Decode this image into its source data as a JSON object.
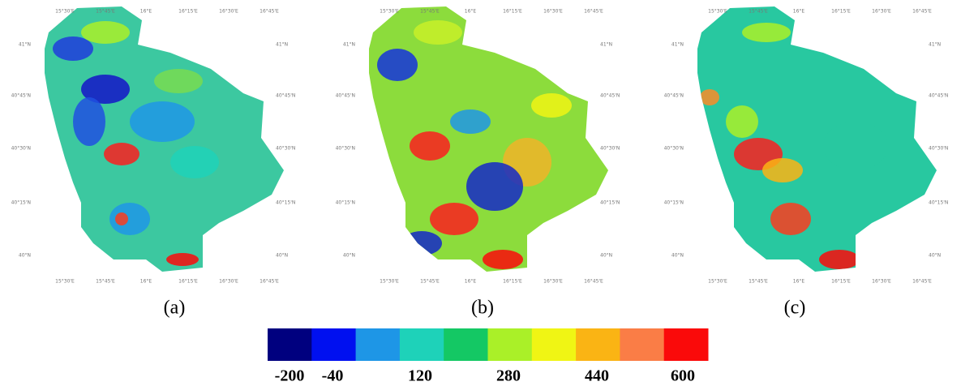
{
  "lon_labels": [
    "15°30'E",
    "15°45'E",
    "16°E",
    "16°15'E",
    "16°30'E",
    "16°45'E"
  ],
  "lat_labels": [
    "41°N",
    "40°45'N",
    "40°30'N",
    "40°15'N",
    "40°N"
  ],
  "panels": [
    "(a)",
    "(b)",
    "(c)"
  ],
  "colorbar": {
    "colors": [
      "#00007f",
      "#0010f0",
      "#1e96e6",
      "#1ed2b9",
      "#14c864",
      "#aaf028",
      "#f0f514",
      "#fab414",
      "#fa7d46",
      "#fa0a0a"
    ],
    "ticks": [
      -200,
      -40,
      120,
      280,
      440,
      600
    ]
  }
}
